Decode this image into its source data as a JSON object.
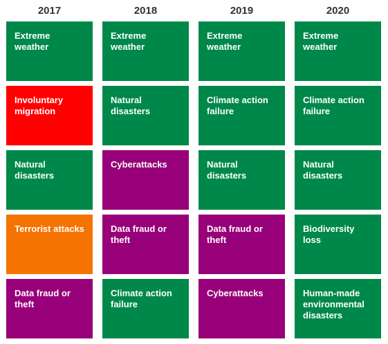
{
  "colors": {
    "environment": "#00884a",
    "societal": "#ff0000",
    "geopolitical": "#f57300",
    "technological": "#980079"
  },
  "columns": [
    {
      "year": "2017",
      "risks": [
        {
          "label": "Extreme weather",
          "category": "environment"
        },
        {
          "label": "Involuntary migration",
          "category": "societal"
        },
        {
          "label": "Natural disasters",
          "category": "environment"
        },
        {
          "label": "Terrorist attacks",
          "category": "geopolitical"
        },
        {
          "label": "Data fraud or theft",
          "category": "technological"
        }
      ]
    },
    {
      "year": "2018",
      "risks": [
        {
          "label": "Extreme weather",
          "category": "environment"
        },
        {
          "label": "Natural disasters",
          "category": "environment"
        },
        {
          "label": "Cyberattacks",
          "category": "technological"
        },
        {
          "label": "Data fraud or theft",
          "category": "technological"
        },
        {
          "label": "Climate action failure",
          "category": "environment"
        }
      ]
    },
    {
      "year": "2019",
      "risks": [
        {
          "label": "Extreme weather",
          "category": "environment"
        },
        {
          "label": "Climate action failure",
          "category": "environment"
        },
        {
          "label": "Natural disasters",
          "category": "environment"
        },
        {
          "label": "Data fraud or theft",
          "category": "technological"
        },
        {
          "label": "Cyberattacks",
          "category": "technological"
        }
      ]
    },
    {
      "year": "2020",
      "risks": [
        {
          "label": "Extreme weather",
          "category": "environment"
        },
        {
          "label": "Climate action failure",
          "category": "environment"
        },
        {
          "label": "Natural disasters",
          "category": "environment"
        },
        {
          "label": "Biodiversity loss",
          "category": "environment"
        },
        {
          "label": "Human-made environmental disasters",
          "category": "environment"
        }
      ]
    }
  ]
}
